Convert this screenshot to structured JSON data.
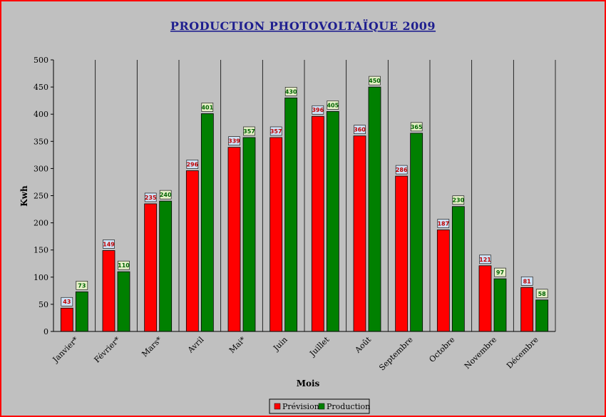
{
  "chart_data": {
    "type": "bar",
    "title": "PRODUCTION PHOTOVOLTAÏQUE 2009",
    "xlabel": "Mois",
    "ylabel": "Kwh",
    "ylim": [
      0,
      500
    ],
    "ytick_step": 50,
    "grid": "vertical",
    "legend_position": "bottom",
    "categories": [
      "Janvier*",
      "Février*",
      "Mars*",
      "Avril",
      "Mai*",
      "Juin",
      "Juillet",
      "Août",
      "Septembre",
      "Octobre",
      "Novembre",
      "Décembre"
    ],
    "series": [
      {
        "name": "Prévision",
        "color": "#ff0000",
        "label_color": "#c00000",
        "label_bg": "#cfe3f7",
        "values": [
          43,
          149,
          235,
          296,
          339,
          357,
          396,
          360,
          286,
          187,
          121,
          81
        ]
      },
      {
        "name": "Production",
        "color": "#008000",
        "label_color": "#006400",
        "label_bg": "#e6f0c8",
        "values": [
          73,
          110,
          240,
          401,
          357,
          430,
          405,
          450,
          365,
          230,
          97,
          58
        ]
      }
    ]
  }
}
